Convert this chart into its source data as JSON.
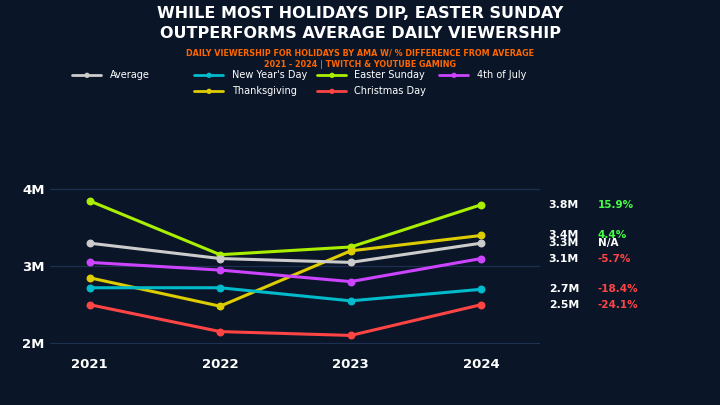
{
  "title_line1": "WHILE MOST HOLIDAYS DIP, EASTER SUNDAY",
  "title_line2": "OUTPERFORMS AVERAGE DAILY VIEWERSHIP",
  "subtitle_line1": "DAILY VIEWERSHIP FOR HOLIDAYS BY AMA W/ % DIFFERENCE FROM AVERAGE",
  "subtitle_line2": "2021 - 2024 | TWITCH & YOUTUBE GAMING",
  "years": [
    2021,
    2022,
    2023,
    2024
  ],
  "series_order": [
    "Easter Sunday",
    "Thanksgiving",
    "Average",
    "4th of July",
    "New Year's Day",
    "Christmas Day"
  ],
  "series": {
    "Easter Sunday": {
      "color": "#aaee00",
      "values": [
        3.85,
        3.15,
        3.25,
        3.8
      ]
    },
    "Thanksgiving": {
      "color": "#ddcc00",
      "values": [
        2.85,
        2.48,
        3.2,
        3.4
      ]
    },
    "Average": {
      "color": "#cccccc",
      "values": [
        3.3,
        3.1,
        3.05,
        3.3
      ]
    },
    "4th of July": {
      "color": "#cc44ff",
      "values": [
        3.05,
        2.95,
        2.8,
        3.1
      ]
    },
    "New Year's Day": {
      "color": "#00bbcc",
      "values": [
        2.72,
        2.72,
        2.55,
        2.7
      ]
    },
    "Christmas Day": {
      "color": "#ff4444",
      "values": [
        2.5,
        2.15,
        2.1,
        2.5
      ]
    }
  },
  "end_labels": [
    {
      "name": "Easter Sunday",
      "y": 3.8,
      "label": "3.8M",
      "pct": "15.9%",
      "pct_color": "#44ff44"
    },
    {
      "name": "Thanksgiving",
      "y": 3.4,
      "label": "3.4M",
      "pct": "4.4%",
      "pct_color": "#44ff44"
    },
    {
      "name": "Average",
      "y": 3.3,
      "label": "3.3M",
      "pct": "N/A",
      "pct_color": "#ffffff"
    },
    {
      "name": "4th of July",
      "y": 3.1,
      "label": "3.1M",
      "pct": "-5.7%",
      "pct_color": "#ff4444"
    },
    {
      "name": "New Year's Day",
      "y": 2.7,
      "label": "2.7M",
      "pct": "-18.4%",
      "pct_color": "#ff4444"
    },
    {
      "name": "Christmas Day",
      "y": 2.5,
      "label": "2.5M",
      "pct": "-24.1%",
      "pct_color": "#ff4444"
    }
  ],
  "legend_row1": [
    {
      "label": "Average",
      "color": "#cccccc"
    },
    {
      "label": "New Year's Day",
      "color": "#00bbcc"
    },
    {
      "label": "Easter Sunday",
      "color": "#aaee00"
    },
    {
      "label": "4th of July",
      "color": "#cc44ff"
    }
  ],
  "legend_row2": [
    {
      "label": "Thanksgiving",
      "color": "#ddcc00"
    },
    {
      "label": "Christmas Day",
      "color": "#ff4444"
    }
  ],
  "ylim": [
    1.88,
    4.25
  ],
  "yticks": [
    2.0,
    3.0,
    4.0
  ],
  "ytick_labels": [
    "2M",
    "3M",
    "4M"
  ],
  "bg_color": "#0a1628",
  "text_color": "#ffffff",
  "subtitle_color": "#ff6600",
  "grid_color": "#1e3050"
}
